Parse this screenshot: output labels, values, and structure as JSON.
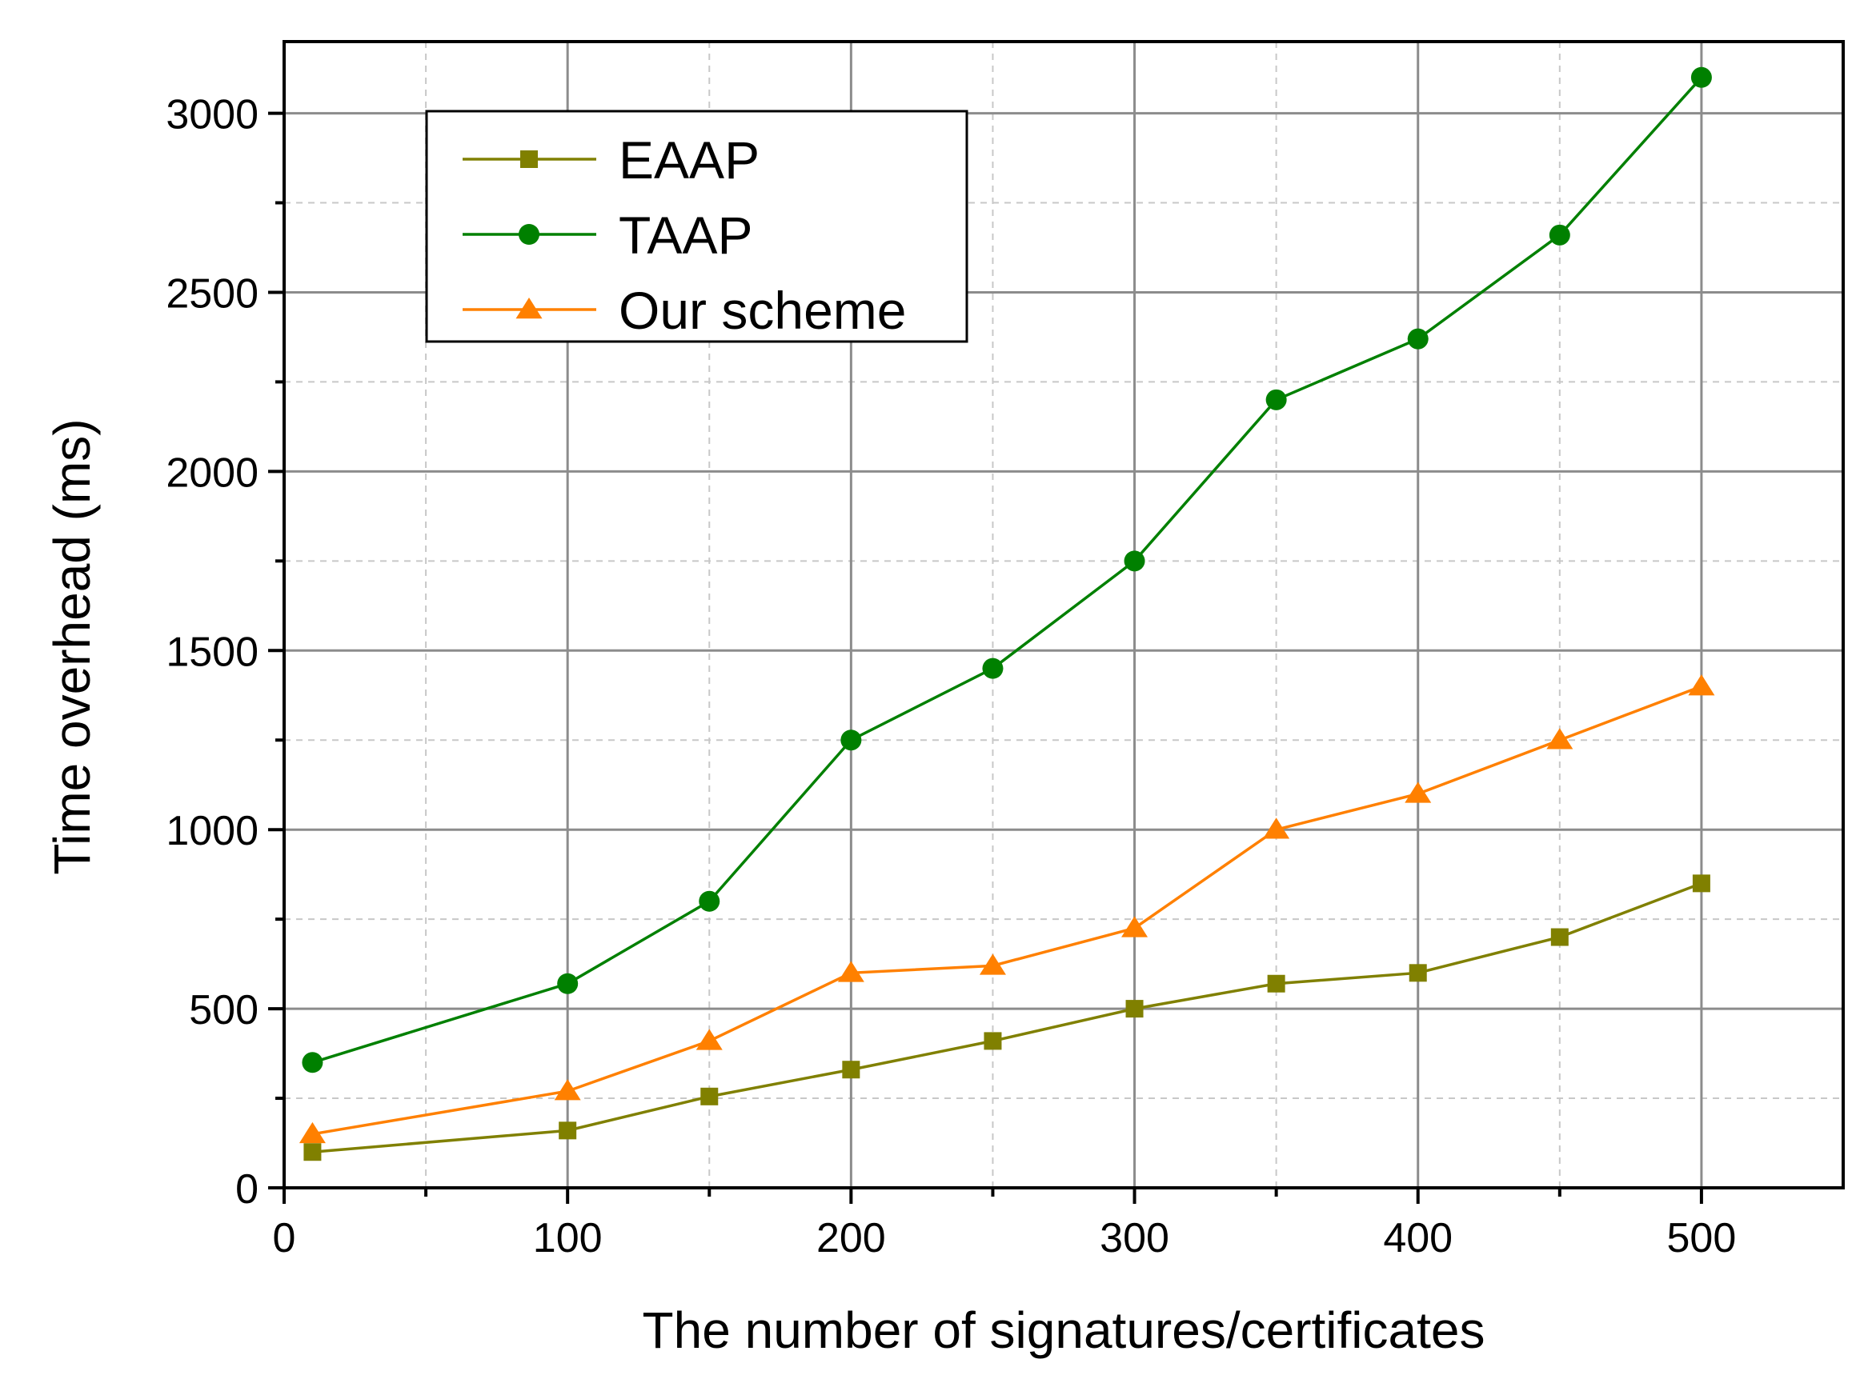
{
  "chart_data": {
    "type": "line",
    "title": "",
    "xlabel": "The number of signatures/certificates",
    "ylabel": "Time overhead (ms)",
    "xlim": [
      0,
      550
    ],
    "ylim": [
      0,
      3200
    ],
    "x_ticks": [
      "0",
      "100",
      "200",
      "300",
      "400",
      "500"
    ],
    "y_ticks": [
      "0",
      "500",
      "1000",
      "1500",
      "2000",
      "2500",
      "3000"
    ],
    "grid": true,
    "legend_position": "top-left",
    "series": [
      {
        "name": "EAAP",
        "marker": "square",
        "color": "#808000",
        "x": [
          10,
          100,
          150,
          200,
          250,
          300,
          350,
          400,
          450,
          500
        ],
        "values": [
          100,
          160,
          255,
          330,
          410,
          500,
          570,
          600,
          700,
          850
        ]
      },
      {
        "name": "TAAP",
        "marker": "circle",
        "color": "#008000",
        "x": [
          10,
          100,
          150,
          200,
          250,
          300,
          350,
          400,
          450,
          500
        ],
        "values": [
          350,
          570,
          800,
          1250,
          1450,
          1750,
          2200,
          2370,
          2660,
          3100
        ]
      },
      {
        "name": "Our scheme",
        "marker": "triangle",
        "color": "#FF8000",
        "x": [
          10,
          100,
          150,
          200,
          250,
          300,
          350,
          400,
          450,
          500
        ],
        "values": [
          150,
          270,
          410,
          600,
          620,
          725,
          1000,
          1100,
          1250,
          1400
        ]
      }
    ]
  }
}
